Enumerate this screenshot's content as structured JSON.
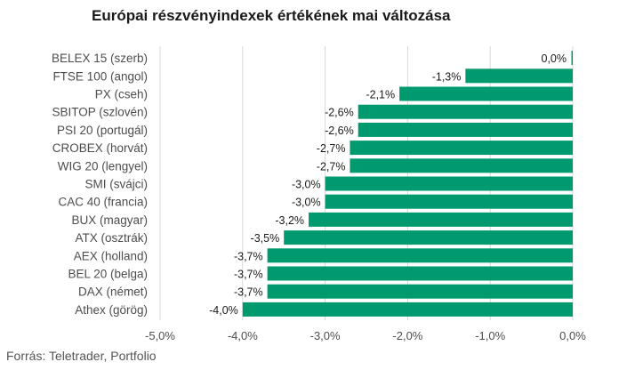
{
  "chart_data": {
    "type": "bar",
    "orientation": "horizontal",
    "title": "Európai részvényindexek értékének mai változása",
    "categories": [
      "BELEX 15 (szerb)",
      "FTSE 100 (angol)",
      "PX (cseh)",
      "SBITOP (szlovén)",
      "PSI 20 (portugál)",
      "CROBEX (horvát)",
      "WIG 20 (lengyel)",
      "SMI (svájci)",
      "CAC 40 (francia)",
      "BUX (magyar)",
      "ATX (osztrák)",
      "AEX (holland)",
      "BEL 20 (belga)",
      "DAX (német)",
      "Athex (görög)"
    ],
    "values": [
      0.0,
      -1.3,
      -2.1,
      -2.6,
      -2.6,
      -2.7,
      -2.7,
      -3.0,
      -3.0,
      -3.2,
      -3.5,
      -3.7,
      -3.7,
      -3.7,
      -4.0
    ],
    "value_labels": [
      "0,0%",
      "-1,3%",
      "-2,1%",
      "-2,6%",
      "-2,6%",
      "-2,7%",
      "-2,7%",
      "-3,0%",
      "-3,0%",
      "-3,2%",
      "-3,5%",
      "-3,7%",
      "-3,7%",
      "-3,7%",
      "-4,0%"
    ],
    "xlim": [
      -5.0,
      0.0
    ],
    "xticks": [
      -5.0,
      -4.0,
      -3.0,
      -2.0,
      -1.0,
      0.0
    ],
    "xtick_labels": [
      "-5,0%",
      "-4,0%",
      "-3,0%",
      "-2,0%",
      "-1,0%",
      "0,0%"
    ],
    "grid": true,
    "legend": "none",
    "bar_color": "#009a6e",
    "grid_color": "#d9d9d9",
    "source": "Forrás: Teletrader, Portfolio"
  }
}
